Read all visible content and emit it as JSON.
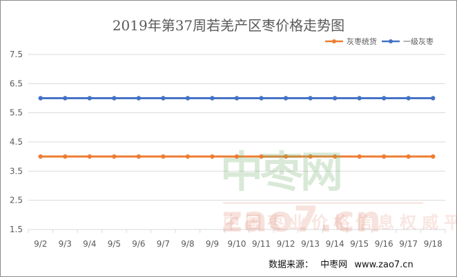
{
  "chart_data": {
    "type": "line",
    "title": "2019年第37周若羌产区枣价格走势图",
    "categories": [
      "9/2",
      "9/3",
      "9/4",
      "9/5",
      "9/6",
      "9/7",
      "9/8",
      "9/9",
      "9/10",
      "9/11",
      "9/12",
      "9/13",
      "9/14",
      "9/15",
      "9/16",
      "9/17",
      "9/18"
    ],
    "series": [
      {
        "name": "灰枣统货",
        "color": "#ED7D31",
        "values": [
          4,
          4,
          4,
          4,
          4,
          4,
          4,
          4,
          4,
          4,
          4,
          4,
          4,
          4,
          4,
          4,
          4
        ]
      },
      {
        "name": "一级灰枣",
        "color": "#4472C4",
        "values": [
          6,
          6,
          6,
          6,
          6,
          6,
          6,
          6,
          6,
          6,
          6,
          6,
          6,
          6,
          6,
          6,
          6
        ]
      }
    ],
    "ylim": [
      1.5,
      7.5
    ],
    "yticks": [
      1.5,
      2.5,
      3.5,
      4.5,
      5.5,
      6.5,
      7.5
    ],
    "xlabel": "",
    "ylabel": "",
    "grid": true,
    "legend": "top-right"
  },
  "source": {
    "label": "数据来源：",
    "name": "中枣网",
    "url": "www.zao7.cn"
  },
  "watermark": {
    "brand_cn": "中枣网",
    "brand_en": "zao7.cn",
    "slogan": "中国枣业价格信息权威平台"
  }
}
